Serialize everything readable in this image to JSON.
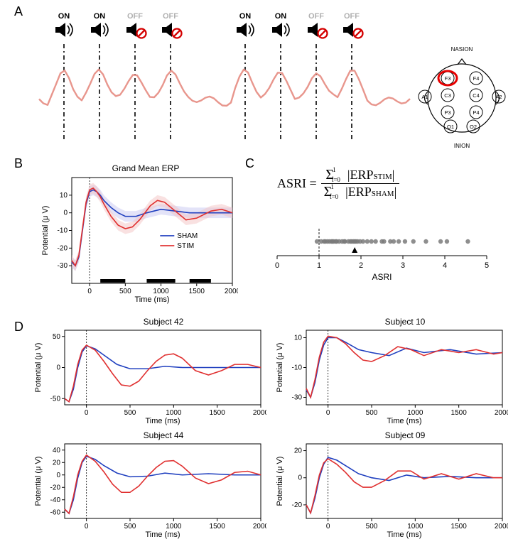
{
  "panelA": {
    "label": "A",
    "icons": [
      {
        "state": "ON",
        "muted": false,
        "label_color": "#000000"
      },
      {
        "state": "ON",
        "muted": false,
        "label_color": "#000000"
      },
      {
        "state": "OFF",
        "muted": true,
        "label_color": "#b0b0b0"
      },
      {
        "state": "OFF",
        "muted": true,
        "label_color": "#b0b0b0"
      },
      {
        "state": "ON",
        "muted": false,
        "label_color": "#000000"
      },
      {
        "state": "ON",
        "muted": false,
        "label_color": "#000000"
      },
      {
        "state": "OFF",
        "muted": true,
        "label_color": "#b0b0b0"
      },
      {
        "state": "OFF",
        "muted": true,
        "label_color": "#b0b0b0"
      }
    ],
    "trace_color": "#e8968d",
    "dash_color": "#000000",
    "head_map": {
      "nasion": "NASION",
      "inion": "INION",
      "highlight": "F3",
      "highlight_color": "#e60000",
      "electrodes": [
        "F3",
        "F4",
        "C3",
        "C4",
        "P3",
        "P4",
        "O1",
        "O2",
        "A1",
        "A2"
      ]
    }
  },
  "panelB": {
    "label": "B",
    "title": "Grand Mean ERP",
    "xlabel": "Time (ms)",
    "ylabel": "Potential (μ V)",
    "xlim": [
      -250,
      2000
    ],
    "xticks": [
      0,
      500,
      1000,
      1500,
      2000
    ],
    "ylim": [
      -40,
      20
    ],
    "yticks": [
      -30,
      -20,
      -10,
      0,
      10
    ],
    "legend": [
      {
        "name": "SHAM",
        "color": "#1f3fbf"
      },
      {
        "name": "STIM",
        "color": "#e03030"
      }
    ],
    "sham_color": "#1f3fbf",
    "stim_color": "#e03030",
    "sham_shade": "#c7c7f2",
    "stim_shade": "#f4c3c3",
    "sig_bars": [
      [
        150,
        500
      ],
      [
        800,
        1200
      ],
      [
        1400,
        1700
      ]
    ],
    "sham": [
      [
        -250,
        -28
      ],
      [
        -200,
        -30
      ],
      [
        -150,
        -25
      ],
      [
        -100,
        -10
      ],
      [
        -50,
        5
      ],
      [
        0,
        12
      ],
      [
        50,
        13
      ],
      [
        100,
        12
      ],
      [
        150,
        10
      ],
      [
        200,
        7
      ],
      [
        300,
        3
      ],
      [
        400,
        0
      ],
      [
        500,
        -2
      ],
      [
        650,
        -2
      ],
      [
        800,
        0
      ],
      [
        1000,
        2
      ],
      [
        1200,
        1
      ],
      [
        1400,
        0
      ],
      [
        1700,
        0
      ],
      [
        2000,
        0
      ]
    ],
    "stim": [
      [
        -250,
        -27
      ],
      [
        -200,
        -30
      ],
      [
        -150,
        -24
      ],
      [
        -100,
        -9
      ],
      [
        -50,
        6
      ],
      [
        0,
        13
      ],
      [
        50,
        14
      ],
      [
        100,
        12
      ],
      [
        150,
        9
      ],
      [
        200,
        5
      ],
      [
        300,
        -2
      ],
      [
        400,
        -7
      ],
      [
        500,
        -9
      ],
      [
        600,
        -8
      ],
      [
        700,
        -4
      ],
      [
        850,
        4
      ],
      [
        950,
        7
      ],
      [
        1050,
        6
      ],
      [
        1200,
        1
      ],
      [
        1350,
        -4
      ],
      [
        1500,
        -3
      ],
      [
        1700,
        1
      ],
      [
        1850,
        2
      ],
      [
        2000,
        0
      ]
    ]
  },
  "panelC": {
    "label": "C",
    "formula_left": "ASRI =",
    "formula_num": "Σ",
    "formula_num_sup": "1",
    "formula_num_sub": "t=0",
    "formula_num_body": "|ERP",
    "formula_num_suffix_sub": "STIM",
    "formula_num_end": "|",
    "formula_den_body": "|ERP",
    "formula_den_suffix_sub": "SHAM",
    "formula_den_end": "|",
    "xlabel": "ASRI",
    "xlim": [
      0,
      5
    ],
    "xticks": [
      0,
      1,
      2,
      3,
      4,
      5
    ],
    "dash_at": 1,
    "arrow_at": 1.85,
    "points": [
      0.95,
      1.05,
      1.12,
      1.15,
      1.2,
      1.25,
      1.3,
      1.32,
      1.35,
      1.4,
      1.42,
      1.48,
      1.55,
      1.6,
      1.62,
      1.7,
      1.75,
      1.78,
      1.82,
      1.85,
      1.88,
      1.92,
      1.98,
      2.05,
      2.15,
      2.25,
      2.35,
      2.5,
      2.55,
      2.7,
      2.78,
      2.9,
      3.05,
      3.25,
      3.55,
      3.9,
      4.05,
      4.55
    ],
    "point_color": "#7a7a7a"
  },
  "panelD": {
    "label": "D",
    "xlabel": "Time (ms)",
    "ylabel": "Potential (μ V)",
    "xlim": [
      -250,
      2000
    ],
    "xticks": [
      0,
      500,
      1000,
      1500,
      2000
    ],
    "sham_color": "#1f3fbf",
    "stim_color": "#e03030",
    "subjects": [
      {
        "title": "Subject 42",
        "ylim": [
          -60,
          60
        ],
        "yticks": [
          -50,
          0,
          50
        ],
        "sham": [
          [
            -250,
            -50
          ],
          [
            -200,
            -55
          ],
          [
            -150,
            -35
          ],
          [
            -100,
            0
          ],
          [
            -50,
            25
          ],
          [
            0,
            35
          ],
          [
            100,
            30
          ],
          [
            200,
            20
          ],
          [
            350,
            5
          ],
          [
            500,
            -2
          ],
          [
            700,
            -2
          ],
          [
            900,
            2
          ],
          [
            1100,
            0
          ],
          [
            1400,
            0
          ],
          [
            1800,
            0
          ],
          [
            2000,
            0
          ]
        ],
        "stim": [
          [
            -250,
            -50
          ],
          [
            -200,
            -55
          ],
          [
            -150,
            -30
          ],
          [
            -100,
            5
          ],
          [
            -50,
            28
          ],
          [
            0,
            36
          ],
          [
            100,
            28
          ],
          [
            200,
            10
          ],
          [
            300,
            -10
          ],
          [
            400,
            -28
          ],
          [
            500,
            -30
          ],
          [
            600,
            -22
          ],
          [
            700,
            -5
          ],
          [
            800,
            10
          ],
          [
            900,
            20
          ],
          [
            1000,
            22
          ],
          [
            1100,
            15
          ],
          [
            1250,
            -5
          ],
          [
            1400,
            -12
          ],
          [
            1550,
            -5
          ],
          [
            1700,
            5
          ],
          [
            1850,
            5
          ],
          [
            2000,
            0
          ]
        ]
      },
      {
        "title": "Subject 10",
        "ylim": [
          -35,
          15
        ],
        "yticks": [
          -30,
          -10,
          10
        ],
        "sham": [
          [
            -250,
            -25
          ],
          [
            -200,
            -30
          ],
          [
            -150,
            -20
          ],
          [
            -100,
            -5
          ],
          [
            -50,
            5
          ],
          [
            0,
            10
          ],
          [
            100,
            10
          ],
          [
            200,
            7
          ],
          [
            350,
            2
          ],
          [
            500,
            0
          ],
          [
            700,
            -2
          ],
          [
            900,
            3
          ],
          [
            1100,
            0
          ],
          [
            1400,
            2
          ],
          [
            1700,
            -1
          ],
          [
            2000,
            0
          ]
        ],
        "stim": [
          [
            -250,
            -24
          ],
          [
            -200,
            -30
          ],
          [
            -150,
            -18
          ],
          [
            -100,
            -3
          ],
          [
            -50,
            7
          ],
          [
            0,
            11
          ],
          [
            100,
            10
          ],
          [
            200,
            6
          ],
          [
            300,
            0
          ],
          [
            400,
            -5
          ],
          [
            500,
            -6
          ],
          [
            650,
            -2
          ],
          [
            800,
            4
          ],
          [
            950,
            2
          ],
          [
            1100,
            -2
          ],
          [
            1300,
            2
          ],
          [
            1500,
            0
          ],
          [
            1700,
            2
          ],
          [
            1900,
            -1
          ],
          [
            2000,
            0
          ]
        ]
      },
      {
        "title": "Subject  44",
        "ylim": [
          -70,
          50
        ],
        "yticks": [
          -60,
          -40,
          -20,
          0,
          20,
          40
        ],
        "sham": [
          [
            -250,
            -55
          ],
          [
            -200,
            -62
          ],
          [
            -150,
            -40
          ],
          [
            -100,
            -5
          ],
          [
            -50,
            20
          ],
          [
            0,
            30
          ],
          [
            100,
            25
          ],
          [
            200,
            15
          ],
          [
            350,
            3
          ],
          [
            500,
            -3
          ],
          [
            700,
            -2
          ],
          [
            900,
            3
          ],
          [
            1100,
            0
          ],
          [
            1400,
            2
          ],
          [
            1700,
            0
          ],
          [
            2000,
            0
          ]
        ],
        "stim": [
          [
            -250,
            -55
          ],
          [
            -200,
            -62
          ],
          [
            -150,
            -35
          ],
          [
            -100,
            0
          ],
          [
            -50,
            22
          ],
          [
            0,
            32
          ],
          [
            100,
            22
          ],
          [
            200,
            5
          ],
          [
            300,
            -15
          ],
          [
            400,
            -28
          ],
          [
            500,
            -28
          ],
          [
            600,
            -18
          ],
          [
            700,
            -2
          ],
          [
            800,
            12
          ],
          [
            900,
            22
          ],
          [
            1000,
            23
          ],
          [
            1100,
            14
          ],
          [
            1250,
            -5
          ],
          [
            1400,
            -14
          ],
          [
            1550,
            -8
          ],
          [
            1700,
            4
          ],
          [
            1850,
            6
          ],
          [
            2000,
            0
          ]
        ]
      },
      {
        "title": "Subject 09",
        "ylim": [
          -30,
          25
        ],
        "yticks": [
          -20,
          0,
          20
        ],
        "sham": [
          [
            -250,
            -20
          ],
          [
            -200,
            -26
          ],
          [
            -150,
            -15
          ],
          [
            -100,
            0
          ],
          [
            -50,
            10
          ],
          [
            0,
            15
          ],
          [
            100,
            13
          ],
          [
            200,
            9
          ],
          [
            350,
            3
          ],
          [
            500,
            0
          ],
          [
            700,
            -2
          ],
          [
            900,
            2
          ],
          [
            1100,
            0
          ],
          [
            1400,
            1
          ],
          [
            1700,
            0
          ],
          [
            2000,
            0
          ]
        ],
        "stim": [
          [
            -250,
            -20
          ],
          [
            -200,
            -26
          ],
          [
            -150,
            -13
          ],
          [
            -100,
            2
          ],
          [
            -50,
            11
          ],
          [
            0,
            14
          ],
          [
            100,
            10
          ],
          [
            200,
            4
          ],
          [
            300,
            -3
          ],
          [
            400,
            -7
          ],
          [
            500,
            -7
          ],
          [
            650,
            -2
          ],
          [
            800,
            5
          ],
          [
            950,
            5
          ],
          [
            1100,
            -1
          ],
          [
            1300,
            3
          ],
          [
            1500,
            -1
          ],
          [
            1700,
            3
          ],
          [
            1900,
            0
          ],
          [
            2000,
            0
          ]
        ]
      }
    ]
  },
  "colors": {
    "bg": "#ffffff",
    "axis": "#000000"
  }
}
